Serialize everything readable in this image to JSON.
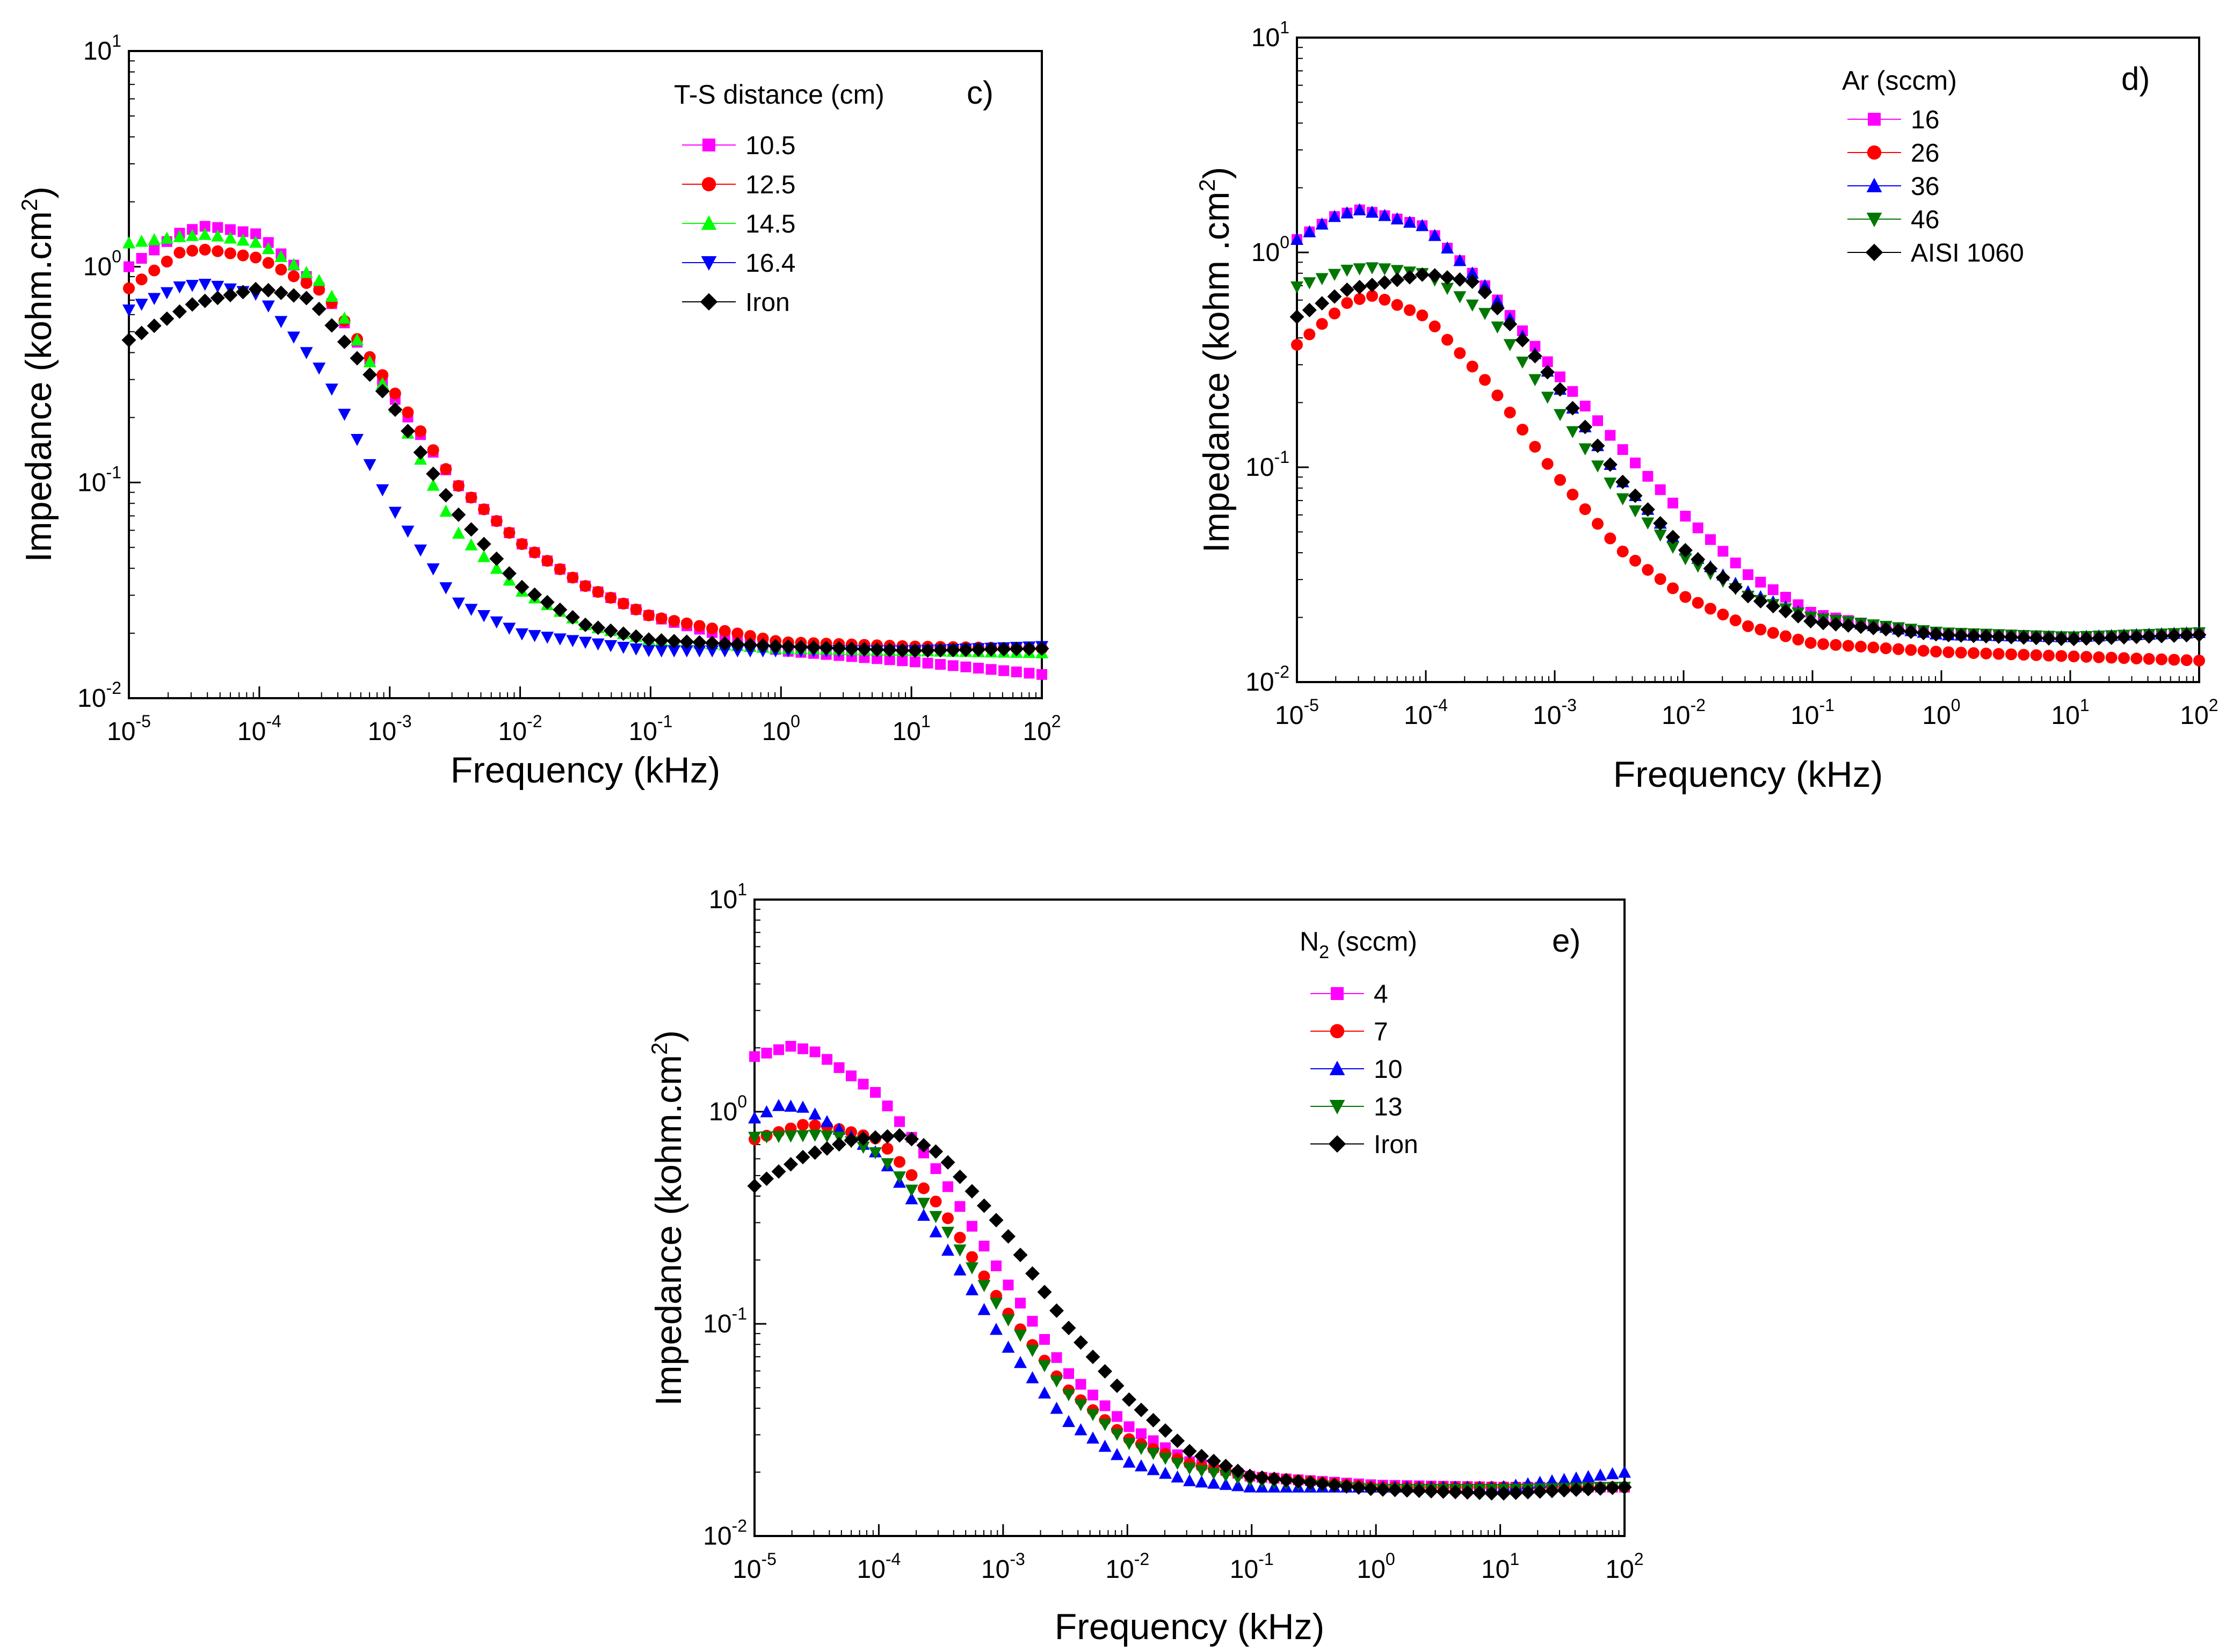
{
  "chart_data": [
    {
      "id": "c",
      "type": "scatter",
      "panel_label": "c)",
      "xlabel": "Frequency (kHz)",
      "ylabel_main": "Impedance (kohm.cm",
      "ylabel_sup": "2",
      "ylabel_close": ")",
      "xscale": "log",
      "yscale": "log",
      "xlim": [
        1e-05,
        100
      ],
      "ylim": [
        0.01,
        10
      ],
      "x_ticks": [
        {
          "base": "10",
          "exp": "-5"
        },
        {
          "base": "10",
          "exp": "-4"
        },
        {
          "base": "10",
          "exp": "-3"
        },
        {
          "base": "10",
          "exp": "-2"
        },
        {
          "base": "10",
          "exp": "-1"
        },
        {
          "base": "10",
          "exp": "0"
        },
        {
          "base": "10",
          "exp": "1"
        },
        {
          "base": "10",
          "exp": "2"
        }
      ],
      "y_ticks": [
        {
          "base": "10",
          "exp": "-2"
        },
        {
          "base": "10",
          "exp": "-1"
        },
        {
          "base": "10",
          "exp": "0"
        },
        {
          "base": "10",
          "exp": "1"
        }
      ],
      "legend_title": "T-S distance (cm)",
      "legend_position": "top-right",
      "series": [
        {
          "name": "10.5",
          "marker": "square",
          "color": "#ff00ff",
          "points": [
            [
              -5,
              0.0
            ],
            [
              -4.6,
              0.16
            ],
            [
              -4.4,
              0.19
            ],
            [
              -4,
              0.15
            ],
            [
              -3.5,
              -0.12
            ],
            [
              -3,
              -0.58
            ],
            [
              -2.5,
              -1.0
            ],
            [
              -2,
              -1.28
            ],
            [
              -1.5,
              -1.48
            ],
            [
              -1,
              -1.62
            ],
            [
              0,
              -1.78
            ],
            [
              1,
              -1.83
            ],
            [
              2,
              -1.89
            ]
          ]
        },
        {
          "name": "12.5",
          "marker": "circle",
          "color": "#ff0000",
          "points": [
            [
              -5,
              -0.1
            ],
            [
              -4.6,
              0.07
            ],
            [
              -4.4,
              0.08
            ],
            [
              -4,
              0.04
            ],
            [
              -3.5,
              -0.12
            ],
            [
              -3,
              -0.55
            ],
            [
              -2.5,
              -1.0
            ],
            [
              -2,
              -1.28
            ],
            [
              -1.5,
              -1.48
            ],
            [
              -1,
              -1.62
            ],
            [
              0,
              -1.74
            ],
            [
              1,
              -1.76
            ],
            [
              2,
              -1.77
            ]
          ]
        },
        {
          "name": "14.5",
          "marker": "triangle-up",
          "color": "#00ff00",
          "points": [
            [
              -5,
              0.11
            ],
            [
              -4.6,
              0.14
            ],
            [
              -4.4,
              0.15
            ],
            [
              -4,
              0.11
            ],
            [
              -3.5,
              -0.08
            ],
            [
              -3,
              -0.6
            ],
            [
              -2.5,
              -1.22
            ],
            [
              -2,
              -1.5
            ],
            [
              -1.5,
              -1.66
            ],
            [
              -1,
              -1.73
            ],
            [
              0,
              -1.77
            ],
            [
              1,
              -1.78
            ],
            [
              2,
              -1.79
            ]
          ]
        },
        {
          "name": "16.4",
          "marker": "triangle-down",
          "color": "#0000ff",
          "points": [
            [
              -5,
              -0.2
            ],
            [
              -4.6,
              -0.09
            ],
            [
              -4.4,
              -0.08
            ],
            [
              -4,
              -0.13
            ],
            [
              -3.5,
              -0.5
            ],
            [
              -3,
              -1.1
            ],
            [
              -2.5,
              -1.55
            ],
            [
              -2,
              -1.7
            ],
            [
              -1,
              -1.78
            ],
            [
              0,
              -1.78
            ],
            [
              1,
              -1.78
            ],
            [
              2,
              -1.76
            ]
          ]
        },
        {
          "name": "Iron",
          "marker": "diamond",
          "color": "#000000",
          "points": [
            [
              -5,
              -0.34
            ],
            [
              -4.5,
              -0.17
            ],
            [
              -4,
              -0.1
            ],
            [
              -3.6,
              -0.15
            ],
            [
              -3,
              -0.62
            ],
            [
              -2.5,
              -1.13
            ],
            [
              -2,
              -1.48
            ],
            [
              -1.5,
              -1.66
            ],
            [
              -1,
              -1.73
            ],
            [
              0,
              -1.76
            ],
            [
              1,
              -1.78
            ],
            [
              2,
              -1.77
            ]
          ]
        }
      ]
    },
    {
      "id": "d",
      "type": "scatter",
      "panel_label": "d)",
      "xlabel": "Frequency (kHz)",
      "ylabel_main": "Impedance (kohm .cm",
      "ylabel_sup": "2",
      "ylabel_close": ")",
      "xscale": "log",
      "yscale": "log",
      "xlim": [
        1e-05,
        100
      ],
      "ylim": [
        0.01,
        10
      ],
      "x_ticks": [
        {
          "base": "10",
          "exp": "-5"
        },
        {
          "base": "10",
          "exp": "-4"
        },
        {
          "base": "10",
          "exp": "-3"
        },
        {
          "base": "10",
          "exp": "-2"
        },
        {
          "base": "10",
          "exp": "-1"
        },
        {
          "base": "10",
          "exp": "0"
        },
        {
          "base": "10",
          "exp": "1"
        },
        {
          "base": "10",
          "exp": "2"
        }
      ],
      "y_ticks": [
        {
          "base": "10",
          "exp": "-2"
        },
        {
          "base": "10",
          "exp": "-1"
        },
        {
          "base": "10",
          "exp": "0"
        },
        {
          "base": "10",
          "exp": "1"
        }
      ],
      "legend_title": "Ar (sccm)",
      "legend_position": "top-right",
      "series": [
        {
          "name": "16",
          "marker": "square",
          "color": "#ff00ff",
          "points": [
            [
              -5,
              0.06
            ],
            [
              -4.7,
              0.17
            ],
            [
              -4.5,
              0.2
            ],
            [
              -4,
              0.12
            ],
            [
              -3.5,
              -0.18
            ],
            [
              -3,
              -0.55
            ],
            [
              -2.5,
              -0.9
            ],
            [
              -2,
              -1.22
            ],
            [
              -1.5,
              -1.5
            ],
            [
              -1,
              -1.68
            ],
            [
              -0.5,
              -1.74
            ],
            [
              0,
              -1.77
            ],
            [
              1,
              -1.79
            ],
            [
              2,
              -1.77
            ]
          ]
        },
        {
          "name": "26",
          "marker": "circle",
          "color": "#ff0000",
          "points": [
            [
              -5,
              -0.43
            ],
            [
              -4.6,
              -0.23
            ],
            [
              -4.4,
              -0.2
            ],
            [
              -4,
              -0.3
            ],
            [
              -3.5,
              -0.62
            ],
            [
              -3,
              -1.03
            ],
            [
              -2.5,
              -1.38
            ],
            [
              -2,
              -1.6
            ],
            [
              -1.5,
              -1.74
            ],
            [
              -1,
              -1.82
            ],
            [
              0,
              -1.86
            ],
            [
              1,
              -1.88
            ],
            [
              2,
              -1.9
            ]
          ]
        },
        {
          "name": "36",
          "marker": "triangle-up",
          "color": "#0000ff",
          "points": [
            [
              -5,
              0.06
            ],
            [
              -4.7,
              0.17
            ],
            [
              -4.5,
              0.2
            ],
            [
              -4,
              0.12
            ],
            [
              -3.5,
              -0.18
            ],
            [
              -3,
              -0.6
            ],
            [
              -2.5,
              -1.05
            ],
            [
              -2,
              -1.38
            ],
            [
              -1.5,
              -1.58
            ],
            [
              -1,
              -1.7
            ],
            [
              0,
              -1.78
            ],
            [
              1,
              -1.79
            ],
            [
              2,
              -1.77
            ]
          ]
        },
        {
          "name": "46",
          "marker": "triangle-down",
          "color": "#007700",
          "points": [
            [
              -5,
              -0.16
            ],
            [
              -4.6,
              -0.08
            ],
            [
              -4.4,
              -0.07
            ],
            [
              -4,
              -0.1
            ],
            [
              -3.5,
              -0.3
            ],
            [
              -3,
              -0.72
            ],
            [
              -2.5,
              -1.13
            ],
            [
              -2,
              -1.42
            ],
            [
              -1.5,
              -1.6
            ],
            [
              -1,
              -1.7
            ],
            [
              0,
              -1.77
            ],
            [
              1,
              -1.79
            ],
            [
              2,
              -1.77
            ]
          ]
        },
        {
          "name": "AISI 1060",
          "marker": "diamond",
          "color": "#000000",
          "points": [
            [
              -5,
              -0.3
            ],
            [
              -4.6,
              -0.17
            ],
            [
              -4.4,
              -0.15
            ],
            [
              -4,
              -0.1
            ],
            [
              -3.6,
              -0.14
            ],
            [
              -3,
              -0.6
            ],
            [
              -2.5,
              -1.05
            ],
            [
              -2,
              -1.38
            ],
            [
              -1.5,
              -1.6
            ],
            [
              -1,
              -1.72
            ],
            [
              0,
              -1.78
            ],
            [
              1,
              -1.8
            ],
            [
              2,
              -1.78
            ]
          ]
        }
      ]
    },
    {
      "id": "e",
      "type": "scatter",
      "panel_label": "e)",
      "xlabel": "Frequency (kHz)",
      "ylabel_main": "Impedance (kohm.cm",
      "ylabel_sup": "2",
      "ylabel_close": ")",
      "xscale": "log",
      "yscale": "log",
      "xlim": [
        1e-05,
        100
      ],
      "ylim": [
        0.01,
        10
      ],
      "x_ticks": [
        {
          "base": "10",
          "exp": "-5"
        },
        {
          "base": "10",
          "exp": "-4"
        },
        {
          "base": "10",
          "exp": "-3"
        },
        {
          "base": "10",
          "exp": "-2"
        },
        {
          "base": "10",
          "exp": "-1"
        },
        {
          "base": "10",
          "exp": "0"
        },
        {
          "base": "10",
          "exp": "1"
        },
        {
          "base": "10",
          "exp": "2"
        }
      ],
      "y_ticks": [
        {
          "base": "10",
          "exp": "-2"
        },
        {
          "base": "10",
          "exp": "-1"
        },
        {
          "base": "10",
          "exp": "0"
        },
        {
          "base": "10",
          "exp": "1"
        }
      ],
      "legend_title_main": "N",
      "legend_title_sub": "2",
      "legend_title_rest": " (sccm)",
      "legend_position": "top-right",
      "series": [
        {
          "name": "4",
          "marker": "square",
          "color": "#ff00ff",
          "points": [
            [
              -5,
              0.26
            ],
            [
              -4.7,
              0.31
            ],
            [
              -4.5,
              0.28
            ],
            [
              -4,
              0.08
            ],
            [
              -3.5,
              -0.3
            ],
            [
              -3,
              -0.78
            ],
            [
              -2.5,
              -1.22
            ],
            [
              -2,
              -1.48
            ],
            [
              -1.5,
              -1.65
            ],
            [
              -1,
              -1.72
            ],
            [
              0,
              -1.76
            ],
            [
              1,
              -1.77
            ],
            [
              2,
              -1.77
            ]
          ]
        },
        {
          "name": "7",
          "marker": "circle",
          "color": "#ff0000",
          "points": [
            [
              -5,
              -0.13
            ],
            [
              -4.6,
              -0.06
            ],
            [
              -4.4,
              -0.07
            ],
            [
              -4,
              -0.13
            ],
            [
              -3.5,
              -0.45
            ],
            [
              -3,
              -0.92
            ],
            [
              -2.5,
              -1.3
            ],
            [
              -2,
              -1.54
            ],
            [
              -1.5,
              -1.66
            ],
            [
              -1,
              -1.72
            ],
            [
              0,
              -1.77
            ],
            [
              1,
              -1.77
            ],
            [
              2,
              -1.77
            ]
          ]
        },
        {
          "name": "10",
          "marker": "triangle-up",
          "color": "#0000ff",
          "points": [
            [
              -5,
              -0.03
            ],
            [
              -4.8,
              0.03
            ],
            [
              -4.6,
              0.02
            ],
            [
              -4,
              -0.2
            ],
            [
              -3.5,
              -0.6
            ],
            [
              -3,
              -1.08
            ],
            [
              -2.5,
              -1.45
            ],
            [
              -2,
              -1.65
            ],
            [
              -1.5,
              -1.74
            ],
            [
              -1,
              -1.77
            ],
            [
              0,
              -1.77
            ],
            [
              1,
              -1.77
            ],
            [
              2,
              -1.7
            ]
          ]
        },
        {
          "name": "13",
          "marker": "triangle-down",
          "color": "#007700",
          "points": [
            [
              -5,
              -0.12
            ],
            [
              -4.5,
              -0.11
            ],
            [
              -4.3,
              -0.12
            ],
            [
              -4,
              -0.2
            ],
            [
              -3.5,
              -0.52
            ],
            [
              -3,
              -0.95
            ],
            [
              -2.5,
              -1.32
            ],
            [
              -2,
              -1.56
            ],
            [
              -1.5,
              -1.68
            ],
            [
              -1,
              -1.74
            ],
            [
              0,
              -1.78
            ],
            [
              1,
              -1.78
            ],
            [
              2,
              -1.77
            ]
          ]
        },
        {
          "name": "Iron",
          "marker": "diamond",
          "color": "#000000",
          "points": [
            [
              -5,
              -0.35
            ],
            [
              -4.6,
              -0.21
            ],
            [
              -4.2,
              -0.13
            ],
            [
              -3.8,
              -0.11
            ],
            [
              -3.5,
              -0.2
            ],
            [
              -3,
              -0.55
            ],
            [
              -2.5,
              -1.0
            ],
            [
              -2,
              -1.35
            ],
            [
              -1.5,
              -1.6
            ],
            [
              -1,
              -1.72
            ],
            [
              0,
              -1.78
            ],
            [
              1,
              -1.8
            ],
            [
              2,
              -1.77
            ]
          ]
        }
      ]
    }
  ]
}
